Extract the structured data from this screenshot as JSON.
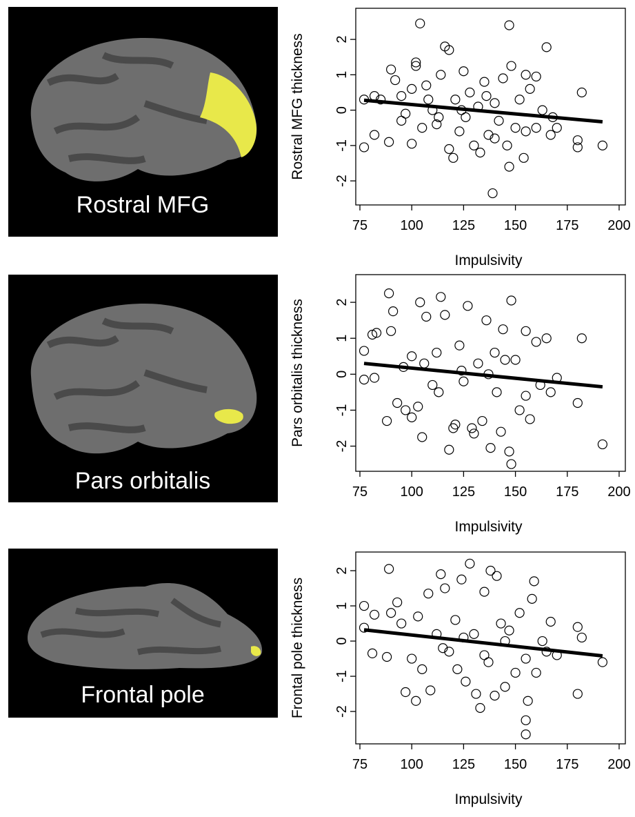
{
  "chart_data": [
    {
      "type": "scatter",
      "region": "Rostral MFG",
      "xlabel": "Impulsivity",
      "ylabel": "Rostral MFG thickness",
      "xlim": [
        73,
        203
      ],
      "ylim": [
        -2.68,
        2.88
      ],
      "xticks": [
        75,
        100,
        125,
        150,
        175,
        200
      ],
      "yticks": [
        -2,
        -1,
        0,
        1,
        2
      ],
      "x": [
        77,
        77,
        82,
        82,
        85,
        89,
        90,
        92,
        95,
        97,
        100,
        100,
        102,
        102,
        104,
        105,
        107,
        110,
        112,
        114,
        116,
        118,
        118,
        120,
        121,
        123,
        125,
        126,
        128,
        130,
        132,
        133,
        135,
        137,
        139,
        140,
        142,
        144,
        146,
        147,
        147,
        148,
        150,
        152,
        154,
        155,
        157,
        160,
        160,
        163,
        165,
        167,
        168,
        170,
        180,
        180,
        182,
        192,
        124,
        136,
        113,
        95,
        140,
        155,
        108
      ],
      "values": [
        0.3,
        -1.05,
        -0.7,
        0.4,
        0.3,
        -0.9,
        1.15,
        0.85,
        0.4,
        -0.1,
        -0.95,
        0.6,
        1.35,
        1.25,
        2.45,
        -0.5,
        0.7,
        0.0,
        -0.4,
        1.0,
        1.8,
        1.7,
        -1.1,
        -1.35,
        0.3,
        -0.6,
        1.1,
        -0.2,
        0.5,
        -1.0,
        0.1,
        -1.2,
        0.8,
        -0.7,
        -2.35,
        0.2,
        -0.3,
        0.9,
        -1.0,
        2.4,
        -1.6,
        1.25,
        -0.5,
        0.3,
        -1.35,
        1.0,
        0.6,
        -0.5,
        0.95,
        0.0,
        1.78,
        -0.7,
        -0.2,
        -0.5,
        -0.85,
        -1.05,
        0.5,
        -1.0,
        0.0,
        0.4,
        -0.2,
        -0.3,
        -0.8,
        -0.6,
        0.3
      ],
      "fit": {
        "x": [
          77,
          192
        ],
        "values": [
          0.28,
          -0.33
        ]
      }
    },
    {
      "type": "scatter",
      "region": "Pars orbitalis",
      "xlabel": "Impulsivity",
      "ylabel": "Pars orbitalis thickness",
      "xlim": [
        73,
        203
      ],
      "ylim": [
        -2.7,
        2.77
      ],
      "xticks": [
        75,
        100,
        125,
        150,
        175,
        200
      ],
      "yticks": [
        -2,
        -1,
        0,
        1,
        2
      ],
      "x": [
        77,
        77,
        81,
        82,
        83,
        88,
        89,
        90,
        91,
        93,
        96,
        97,
        100,
        100,
        103,
        104,
        105,
        107,
        110,
        112,
        114,
        116,
        118,
        120,
        121,
        123,
        125,
        127,
        129,
        130,
        132,
        134,
        136,
        138,
        140,
        141,
        143,
        144,
        147,
        148,
        148,
        150,
        152,
        155,
        155,
        157,
        160,
        162,
        165,
        167,
        170,
        180,
        182,
        192,
        124,
        113,
        137,
        145,
        106
      ],
      "values": [
        0.65,
        -0.15,
        1.1,
        -0.1,
        1.15,
        -1.3,
        2.25,
        1.2,
        1.75,
        -0.8,
        0.2,
        -1.0,
        -1.2,
        0.5,
        -0.9,
        2.0,
        -1.75,
        1.6,
        -0.3,
        0.6,
        2.15,
        1.65,
        -2.1,
        -1.5,
        -1.4,
        0.8,
        -0.2,
        1.9,
        -1.5,
        -1.65,
        0.3,
        -1.3,
        1.5,
        -2.05,
        0.6,
        -0.5,
        -1.6,
        1.25,
        -2.15,
        -2.5,
        2.05,
        0.4,
        -1.0,
        -0.6,
        1.2,
        -1.25,
        0.9,
        -0.3,
        1.0,
        -0.5,
        -0.1,
        -0.8,
        1.0,
        -1.95,
        0.1,
        -0.5,
        0.0,
        0.4,
        0.3
      ],
      "fit": {
        "x": [
          77,
          192
        ],
        "values": [
          0.3,
          -0.35
        ]
      }
    },
    {
      "type": "scatter",
      "region": "Frontal pole",
      "xlabel": "Impulsivity",
      "ylabel": "Frontal pole thickness",
      "xlim": [
        73,
        203
      ],
      "ylim": [
        -2.92,
        2.53
      ],
      "xticks": [
        75,
        100,
        125,
        150,
        175,
        200
      ],
      "yticks": [
        -2,
        -1,
        0,
        1,
        2
      ],
      "x": [
        77,
        77,
        81,
        82,
        88,
        89,
        90,
        93,
        95,
        97,
        100,
        102,
        103,
        105,
        108,
        109,
        112,
        114,
        116,
        118,
        121,
        122,
        124,
        126,
        128,
        130,
        131,
        133,
        135,
        137,
        138,
        140,
        141,
        143,
        145,
        147,
        150,
        152,
        155,
        155,
        155,
        156,
        158,
        159,
        160,
        163,
        165,
        167,
        170,
        180,
        180,
        182,
        192,
        125,
        115,
        145,
        135
      ],
      "values": [
        1.0,
        0.38,
        -0.35,
        0.75,
        -0.45,
        2.05,
        0.8,
        1.1,
        0.5,
        -1.45,
        -0.5,
        -1.7,
        0.7,
        -0.8,
        1.35,
        -1.4,
        0.2,
        1.9,
        1.5,
        -0.3,
        0.6,
        -0.8,
        1.75,
        -1.15,
        2.2,
        0.2,
        -1.5,
        -1.9,
        1.4,
        -0.6,
        2.0,
        -1.55,
        1.85,
        0.5,
        -1.3,
        0.3,
        -0.9,
        0.8,
        -0.5,
        -2.25,
        -2.65,
        -1.7,
        1.2,
        1.7,
        -0.9,
        0.0,
        -0.3,
        0.55,
        -0.4,
        -1.5,
        0.4,
        0.1,
        -0.6,
        0.1,
        -0.2,
        0.0,
        -0.4
      ],
      "fit": {
        "x": [
          77,
          192
        ],
        "values": [
          0.32,
          -0.42
        ]
      }
    }
  ]
}
